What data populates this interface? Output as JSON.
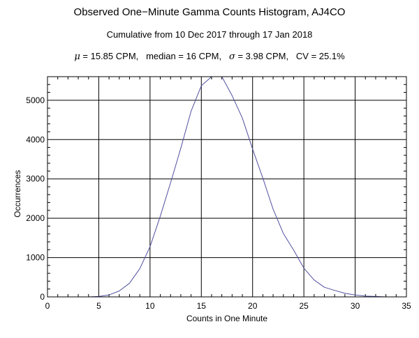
{
  "chart_data": {
    "type": "line",
    "title": "Observed One−Minute Gamma Counts Histogram, AJ4CO",
    "subtitle": "Cumulative from 10 Dec 2017 through 17 Jan 2018",
    "stats": {
      "mean_symbol": "μ",
      "mean_text": " = 15.85 CPM,   median = 16 CPM,   ",
      "sigma_symbol": "σ",
      "sigma_text": " = 3.98 CPM,   CV = 25.1%"
    },
    "xlabel": "Counts in One Minute",
    "ylabel": "Occurrences",
    "xlim": [
      0,
      35
    ],
    "ylim": [
      0,
      5600
    ],
    "xticks": [
      0,
      5,
      10,
      15,
      20,
      25,
      30,
      35
    ],
    "yticks": [
      0,
      1000,
      2000,
      3000,
      4000,
      5000
    ],
    "grid": true,
    "series": [
      {
        "color": "#5050a0",
        "x": [
          2,
          3,
          4,
          5,
          6,
          7,
          8,
          9,
          10,
          11,
          12,
          13,
          14,
          15,
          16,
          17,
          18,
          19,
          20,
          21,
          22,
          23,
          24,
          25,
          26,
          27,
          28,
          29,
          30,
          31,
          32,
          33,
          34
        ],
        "y": [
          0,
          0,
          0,
          10,
          50,
          150,
          350,
          720,
          1280,
          2050,
          2900,
          3780,
          4720,
          5370,
          5600,
          5600,
          5120,
          4550,
          3760,
          3020,
          2230,
          1610,
          1190,
          730,
          430,
          245,
          165,
          90,
          50,
          20,
          10,
          0,
          0
        ]
      }
    ]
  }
}
